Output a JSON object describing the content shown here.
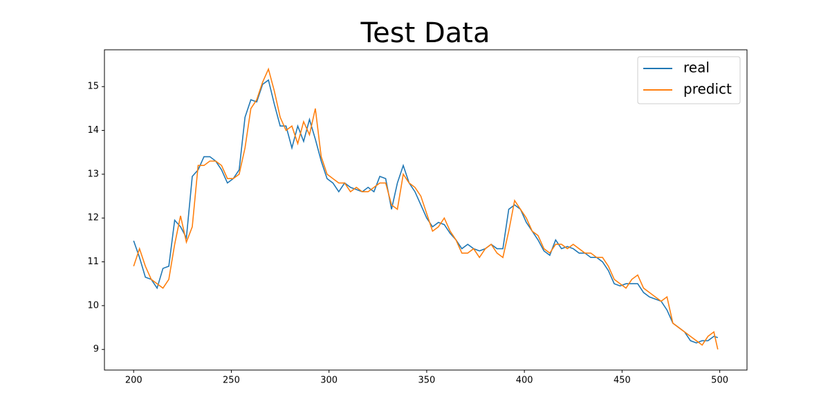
{
  "chart_data": {
    "type": "line",
    "title": "Test Data",
    "x": [
      200,
      203,
      206,
      209,
      212,
      215,
      218,
      221,
      224,
      227,
      230,
      233,
      236,
      239,
      242,
      245,
      248,
      251,
      254,
      257,
      260,
      263,
      266,
      269,
      272,
      275,
      278,
      281,
      284,
      287,
      290,
      293,
      296,
      299,
      302,
      305,
      308,
      311,
      314,
      317,
      320,
      323,
      326,
      329,
      332,
      335,
      338,
      341,
      344,
      347,
      350,
      353,
      356,
      359,
      362,
      365,
      368,
      371,
      374,
      377,
      380,
      383,
      386,
      389,
      392,
      395,
      398,
      401,
      404,
      407,
      410,
      413,
      416,
      419,
      422,
      425,
      428,
      431,
      434,
      437,
      440,
      443,
      446,
      449,
      452,
      455,
      458,
      461,
      464,
      467,
      470,
      473,
      476,
      479,
      482,
      485,
      488,
      491,
      494,
      497,
      499
    ],
    "series": [
      {
        "name": "real",
        "color": "#1f77b4",
        "values": [
          11.48,
          11.1,
          10.65,
          10.6,
          10.4,
          10.85,
          10.9,
          11.95,
          11.8,
          11.55,
          12.95,
          13.1,
          13.4,
          13.4,
          13.3,
          13.1,
          12.8,
          12.9,
          13.1,
          14.3,
          14.7,
          14.65,
          15.05,
          15.15,
          14.6,
          14.1,
          14.1,
          13.6,
          14.1,
          13.75,
          14.25,
          13.8,
          13.3,
          12.9,
          12.8,
          12.6,
          12.8,
          12.7,
          12.65,
          12.6,
          12.7,
          12.6,
          12.95,
          12.9,
          12.2,
          12.8,
          13.2,
          12.8,
          12.6,
          12.3,
          12.0,
          11.8,
          11.9,
          11.85,
          11.65,
          11.5,
          11.3,
          11.4,
          11.3,
          11.25,
          11.3,
          11.4,
          11.3,
          11.3,
          12.2,
          12.3,
          12.2,
          11.9,
          11.7,
          11.5,
          11.25,
          11.15,
          11.5,
          11.3,
          11.35,
          11.3,
          11.2,
          11.2,
          11.1,
          11.1,
          11.0,
          10.8,
          10.5,
          10.45,
          10.5,
          10.5,
          10.5,
          10.3,
          10.2,
          10.15,
          10.1,
          9.9,
          9.6,
          9.5,
          9.4,
          9.2,
          9.15,
          9.2,
          9.2,
          9.3,
          9.27
        ]
      },
      {
        "name": "predict",
        "color": "#ff7f0e",
        "values": [
          10.9,
          11.3,
          10.9,
          10.6,
          10.5,
          10.4,
          10.6,
          11.4,
          12.05,
          11.45,
          11.8,
          13.2,
          13.2,
          13.3,
          13.3,
          13.2,
          12.9,
          12.9,
          13.0,
          13.6,
          14.5,
          14.7,
          15.1,
          15.4,
          14.9,
          14.3,
          14.0,
          14.1,
          13.7,
          14.2,
          13.9,
          14.5,
          13.4,
          13.0,
          12.9,
          12.8,
          12.8,
          12.6,
          12.7,
          12.6,
          12.6,
          12.7,
          12.8,
          12.8,
          12.3,
          12.2,
          13.0,
          12.8,
          12.7,
          12.5,
          12.1,
          11.7,
          11.8,
          12.0,
          11.7,
          11.5,
          11.2,
          11.2,
          11.3,
          11.1,
          11.3,
          11.4,
          11.2,
          11.1,
          11.7,
          12.4,
          12.2,
          12.0,
          11.7,
          11.6,
          11.3,
          11.2,
          11.4,
          11.4,
          11.3,
          11.4,
          11.3,
          11.2,
          11.2,
          11.1,
          11.1,
          10.9,
          10.6,
          10.5,
          10.4,
          10.6,
          10.7,
          10.4,
          10.3,
          10.2,
          10.1,
          10.2,
          9.6,
          9.5,
          9.4,
          9.3,
          9.2,
          9.1,
          9.3,
          9.4,
          9.0
        ]
      }
    ],
    "xlim": [
      185.05,
      513.95
    ],
    "ylim": [
      8.53,
      15.84
    ],
    "xticks": [
      200,
      250,
      300,
      350,
      400,
      450,
      500
    ],
    "yticks": [
      9,
      10,
      11,
      12,
      13,
      14,
      15
    ],
    "grid": false,
    "legend": "upper right"
  }
}
